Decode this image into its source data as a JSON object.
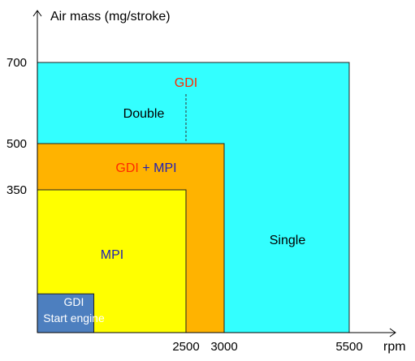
{
  "chart_data": {
    "type": "area",
    "ylabel": "Air mass (mg/stroke)",
    "xlabel": "rpm",
    "x_ticks": [
      {
        "value": 2500,
        "label": "2500"
      },
      {
        "value": 3000,
        "label": "3000"
      },
      {
        "value": 5500,
        "label": "5500"
      }
    ],
    "y_ticks": [
      {
        "value": 350,
        "label": "350"
      },
      {
        "value": 500,
        "label": "500"
      },
      {
        "value": 700,
        "label": "700"
      }
    ],
    "regions": [
      {
        "key": "single",
        "x_max": 5500,
        "y_max": 700,
        "color": "#33ffff"
      },
      {
        "key": "gdi_mpi",
        "x_max": 3000,
        "y_max": 500,
        "color": "#ffb300"
      },
      {
        "key": "mpi",
        "x_max": 2500,
        "y_max": 350,
        "color": "#ffff00"
      },
      {
        "key": "gdi_start",
        "x_max": 950,
        "y_max": 95,
        "color": "#4d7fbf"
      }
    ],
    "labels": {
      "single": "Single",
      "double": "Double",
      "gdi_top": "GDI",
      "mpi": "MPI",
      "gdi_mix": "GDI",
      "plus": " + ",
      "mpi_mix": "MPI",
      "gdi_start_line1": "GDI",
      "gdi_start_line2": "Start engine"
    },
    "divider": {
      "x": 2000,
      "y_from": 500,
      "y_to": 650
    },
    "colors": {
      "axis": "#000000",
      "outline": "#222222",
      "red_text": "#ff2a00",
      "blue_text": "#1f1fb4",
      "white_text": "#ffffff",
      "black_text": "#000000"
    }
  }
}
